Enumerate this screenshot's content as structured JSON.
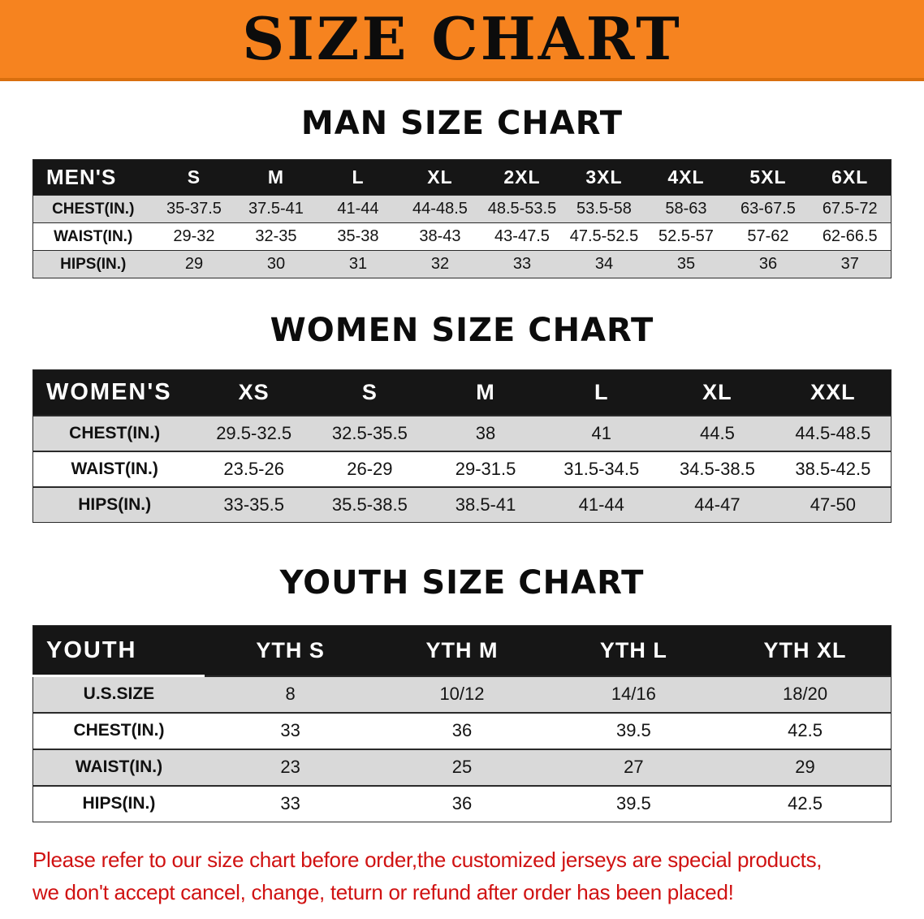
{
  "banner": {
    "title": "SIZE CHART"
  },
  "sections": [
    {
      "heading": "MAN SIZE CHART",
      "table": {
        "name": "mens",
        "header": [
          "MEN'S",
          "S",
          "M",
          "L",
          "XL",
          "2XL",
          "3XL",
          "4XL",
          "5XL",
          "6XL"
        ],
        "rows": [
          {
            "label": "CHEST(IN.)",
            "values": [
              "35-37.5",
              "37.5-41",
              "41-44",
              "44-48.5",
              "48.5-53.5",
              "53.5-58",
              "58-63",
              "63-67.5",
              "67.5-72"
            ]
          },
          {
            "label": "WAIST(IN.)",
            "values": [
              "29-32",
              "32-35",
              "35-38",
              "38-43",
              "43-47.5",
              "47.5-52.5",
              "52.5-57",
              "57-62",
              "62-66.5"
            ]
          },
          {
            "label": "HIPS(IN.)",
            "values": [
              "29",
              "30",
              "31",
              "32",
              "33",
              "34",
              "35",
              "36",
              "37"
            ]
          }
        ]
      }
    },
    {
      "heading": "WOMEN SIZE CHART",
      "table": {
        "name": "womens",
        "header": [
          "WOMEN'S",
          "XS",
          "S",
          "M",
          "L",
          "XL",
          "XXL"
        ],
        "rows": [
          {
            "label": "CHEST(IN.)",
            "values": [
              "29.5-32.5",
              "32.5-35.5",
              "38",
              "41",
              "44.5",
              "44.5-48.5"
            ]
          },
          {
            "label": "WAIST(IN.)",
            "values": [
              "23.5-26",
              "26-29",
              "29-31.5",
              "31.5-34.5",
              "34.5-38.5",
              "38.5-42.5"
            ]
          },
          {
            "label": "HIPS(IN.)",
            "values": [
              "33-35.5",
              "35.5-38.5",
              "38.5-41",
              "41-44",
              "44-47",
              "47-50"
            ]
          }
        ]
      }
    },
    {
      "heading": "YOUTH SIZE CHART",
      "table": {
        "name": "youth",
        "header": [
          "YOUTH",
          "YTH S",
          "YTH M",
          "YTH L",
          "YTH XL"
        ],
        "rows": [
          {
            "label": "U.S.SIZE",
            "values": [
              "8",
              "10/12",
              "14/16",
              "18/20"
            ]
          },
          {
            "label": "CHEST(IN.)",
            "values": [
              "33",
              "36",
              "39.5",
              "42.5"
            ]
          },
          {
            "label": "WAIST(IN.)",
            "values": [
              "23",
              "25",
              "27",
              "29"
            ]
          },
          {
            "label": "HIPS(IN.)",
            "values": [
              "33",
              "36",
              "39.5",
              "42.5"
            ]
          }
        ]
      }
    }
  ],
  "footer": {
    "lines": [
      "Please refer to our size chart before order,the customized jerseys are special products,",
      "we don't accept cancel, change, teturn or refund after order has been placed!"
    ]
  },
  "colors": {
    "banner-orange": "#F6831F",
    "banner-edge": "#D96F0E",
    "header-black": "#161616",
    "row-gray": "#D9D9D9",
    "row-white": "#FFFFFF",
    "text-black": "#141414",
    "disclaimer-red": "#D01212"
  }
}
